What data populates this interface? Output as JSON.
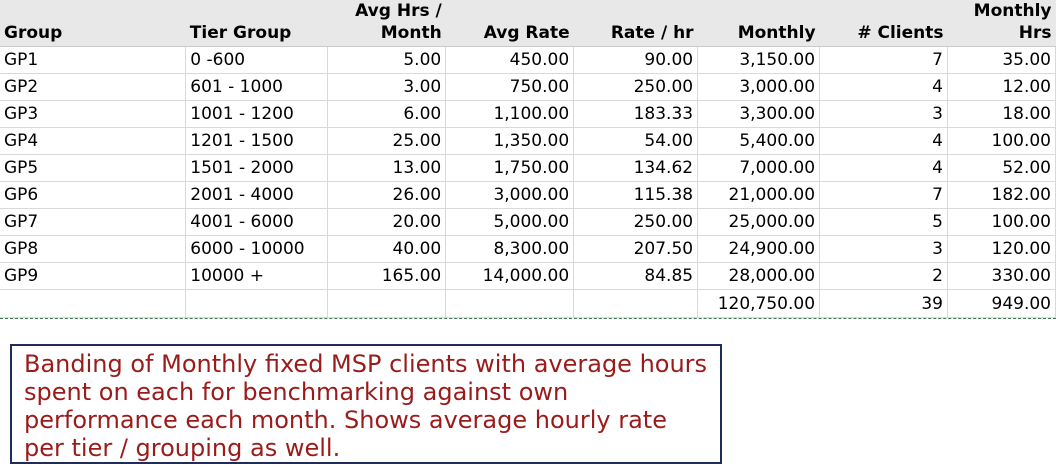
{
  "table": {
    "headers": [
      {
        "line1": "",
        "line2": "Group"
      },
      {
        "line1": "",
        "line2": "Tier Group"
      },
      {
        "line1": "Avg Hrs /",
        "line2": "Month"
      },
      {
        "line1": "",
        "line2": "Avg Rate"
      },
      {
        "line1": "",
        "line2": "Rate / hr"
      },
      {
        "line1": "",
        "line2": "Monthly"
      },
      {
        "line1": "",
        "line2": "# Clients"
      },
      {
        "line1": "Monthly",
        "line2": "Hrs"
      }
    ],
    "rows": [
      [
        "GP1",
        "0 -600",
        "5.00",
        "450.00",
        "90.00",
        "3,150.00",
        "7",
        "35.00"
      ],
      [
        "GP2",
        "601 - 1000",
        "3.00",
        "750.00",
        "250.00",
        "3,000.00",
        "4",
        "12.00"
      ],
      [
        "GP3",
        "1001 - 1200",
        "6.00",
        "1,100.00",
        "183.33",
        "3,300.00",
        "3",
        "18.00"
      ],
      [
        "GP4",
        "1201 - 1500",
        "25.00",
        "1,350.00",
        "54.00",
        "5,400.00",
        "4",
        "100.00"
      ],
      [
        "GP5",
        "1501 - 2000",
        "13.00",
        "1,750.00",
        "134.62",
        "7,000.00",
        "4",
        "52.00"
      ],
      [
        "GP6",
        "2001 - 4000",
        "26.00",
        "3,000.00",
        "115.38",
        "21,000.00",
        "7",
        "182.00"
      ],
      [
        "GP7",
        "4001 - 6000",
        "20.00",
        "5,000.00",
        "250.00",
        "25,000.00",
        "5",
        "100.00"
      ],
      [
        "GP8",
        "6000 - 10000",
        "40.00",
        "8,300.00",
        "207.50",
        "24,900.00",
        "3",
        "120.00"
      ],
      [
        "GP9",
        "10000 +",
        "165.00",
        "14,000.00",
        "84.85",
        "28,000.00",
        "2",
        "330.00"
      ]
    ],
    "totals": [
      "",
      "",
      "",
      "",
      "",
      "120,750.00",
      "39",
      "949.00"
    ]
  },
  "note": {
    "text": "Banding of Monthly fixed MSP clients with average hours spent on each for benchmarking against own performance each month.  Shows average hourly rate per tier / grouping as well."
  },
  "colors": {
    "header_bg": "#e8e8e8",
    "note_text": "#9b1b1b",
    "note_border": "#1f2d5c"
  }
}
